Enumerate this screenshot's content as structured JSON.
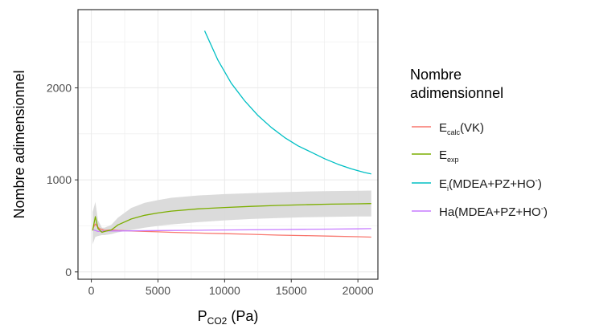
{
  "chart_data": {
    "type": "line",
    "xlabel": {
      "main": "P",
      "sub": "CO2",
      "unit": " (Pa)"
    },
    "ylabel": "Nombre adimensionnel",
    "xlim": [
      -1000,
      21500
    ],
    "ylim": [
      -80,
      2850
    ],
    "x_ticks": [
      0,
      5000,
      10000,
      15000,
      20000
    ],
    "x_tick_labels": [
      "0",
      "5000",
      "10000",
      "15000",
      "20000"
    ],
    "y_ticks": [
      0,
      1000,
      2000
    ],
    "y_tick_labels": [
      "0",
      "1000",
      "2000"
    ],
    "grid": true,
    "legend": {
      "position": "right",
      "title": [
        "Nombre",
        "adimensionnel"
      ],
      "entries": [
        {
          "main": "E",
          "sub": "calc",
          "rest": "(VK)"
        },
        {
          "main": "E",
          "sub": "exp",
          "rest": ""
        },
        {
          "main": "E",
          "sub": "i",
          "rest": "(MDEA+PZ+HO",
          "sup": "-",
          "tail": ")"
        },
        {
          "main": "Ha(MDEA+PZ+HO",
          "sup": "-",
          "tail": ")"
        }
      ]
    },
    "colors": {
      "E_calc": "#f8766d",
      "E_exp": "#7cae00",
      "E_i": "#00bfc4",
      "Ha": "#c77cff",
      "ribbon": "#d9d9d9",
      "grid": "#ebebeb",
      "panel_border": "#333333"
    },
    "series": [
      {
        "key": "E_calc",
        "x": [
          100,
          300,
          600,
          1000,
          1500,
          2000,
          3000,
          4000,
          5000,
          6000,
          8000,
          10000,
          12000,
          14000,
          16000,
          18000,
          20000,
          21000
        ],
        "y": [
          470,
          520,
          470,
          450,
          455,
          450,
          445,
          440,
          435,
          430,
          422,
          415,
          408,
          400,
          394,
          388,
          382,
          378
        ]
      },
      {
        "key": "E_exp",
        "x": [
          100,
          300,
          500,
          800,
          1000,
          1500,
          2000,
          3000,
          4000,
          5000,
          6000,
          8000,
          10000,
          12000,
          14000,
          16000,
          18000,
          20000,
          21000
        ],
        "y": [
          450,
          600,
          470,
          430,
          440,
          455,
          510,
          575,
          615,
          640,
          660,
          685,
          700,
          712,
          722,
          730,
          736,
          740,
          742
        ],
        "ribbon_low": [
          300,
          380,
          390,
          400,
          400,
          410,
          430,
          455,
          480,
          500,
          515,
          540,
          560,
          575,
          585,
          593,
          598,
          602,
          603
        ],
        "ribbon_high": [
          650,
          760,
          560,
          480,
          480,
          510,
          590,
          695,
          750,
          780,
          805,
          830,
          845,
          855,
          865,
          873,
          878,
          882,
          884
        ]
      },
      {
        "key": "E_i",
        "x": [
          8500,
          9500,
          10500,
          11500,
          12500,
          13500,
          14500,
          15500,
          16500,
          17500,
          18500,
          19500,
          20500,
          21000
        ],
        "y": [
          2620,
          2300,
          2050,
          1860,
          1700,
          1570,
          1460,
          1370,
          1300,
          1230,
          1170,
          1120,
          1080,
          1065
        ]
      },
      {
        "key": "Ha",
        "x": [
          100,
          500,
          1000,
          2000,
          4000,
          6000,
          8000,
          10000,
          12000,
          14000,
          16000,
          18000,
          20000,
          21000
        ],
        "y": [
          460,
          440,
          445,
          445,
          448,
          450,
          452,
          455,
          457,
          460,
          462,
          465,
          468,
          470
        ]
      }
    ]
  }
}
